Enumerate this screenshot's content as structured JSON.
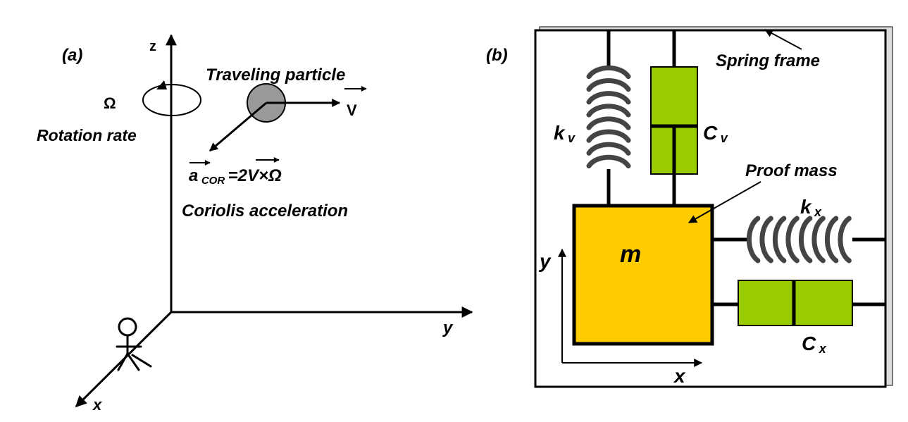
{
  "panel_a": {
    "tag": "(a)",
    "axis_z": "z",
    "axis_y": "y",
    "axis_x": "x",
    "omega_symbol": "Ω",
    "rotation_label": "Rotation rate",
    "particle_label": "Traveling particle",
    "velocity_label": "V",
    "coriolis_a": "a",
    "coriolis_sub": "COR",
    "coriolis_eq": "=2V×Ω",
    "coriolis_label": "Coriolis acceleration"
  },
  "panel_b": {
    "tag": "(b)",
    "frame_label": "Spring frame",
    "proof_mass_label": "Proof mass",
    "mass_label": "m",
    "ky_main": "k",
    "ky_sub": "v",
    "cy_main": "C",
    "cy_sub": "v",
    "kx_main": "k",
    "kx_sub": "x",
    "cx_main": "C",
    "cx_sub": "x",
    "axis_y": "y",
    "axis_x": "x"
  },
  "colors": {
    "proof_mass": "#ffcc00",
    "damper": "#99cc00",
    "particle": "#999999",
    "spring": "#444444"
  }
}
